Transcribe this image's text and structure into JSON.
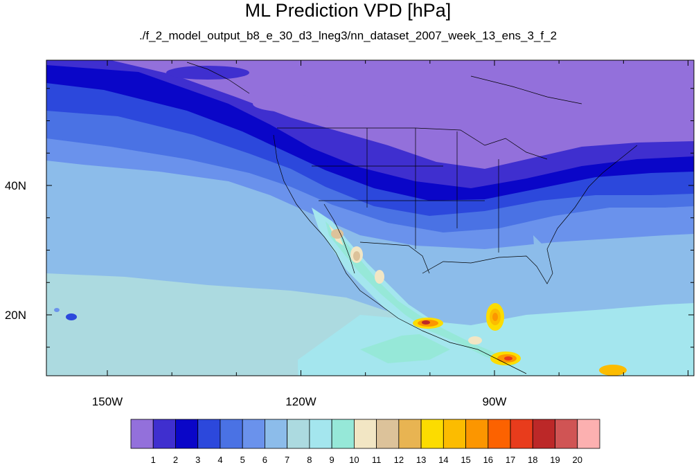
{
  "title": "ML Prediction VPD [hPa]",
  "subtitle": "./f_2_model_output_b8_e_30_d3_lneg3/nn_dataset_2007_week_13_ens_3_f_2",
  "x_ticks": [
    {
      "label": "150W",
      "lon": -150
    },
    {
      "label": "120W",
      "lon": -120
    },
    {
      "label": "90W",
      "lon": -90
    }
  ],
  "y_ticks": [
    {
      "label": "40N",
      "lat": 40
    },
    {
      "label": "20N",
      "lat": 20
    }
  ],
  "colorbar": {
    "colors": [
      "#9370db",
      "#3f2fcf",
      "#0a06c8",
      "#2c48dc",
      "#4a72e4",
      "#6a92ec",
      "#8cbcea",
      "#acdae0",
      "#a4e6ee",
      "#96e8d8",
      "#f2e6c4",
      "#dcc29a",
      "#e8b452",
      "#fcdc00",
      "#fcbc00",
      "#fc9600",
      "#fc6200",
      "#e83c1c",
      "#bc2828",
      "#d05454",
      "#fcb0b0"
    ],
    "labels": [
      "1",
      "2",
      "3",
      "4",
      "5",
      "6",
      "7",
      "8",
      "9",
      "10",
      "11",
      "12",
      "13",
      "14",
      "15",
      "16",
      "17",
      "18",
      "19",
      "20"
    ]
  }
}
